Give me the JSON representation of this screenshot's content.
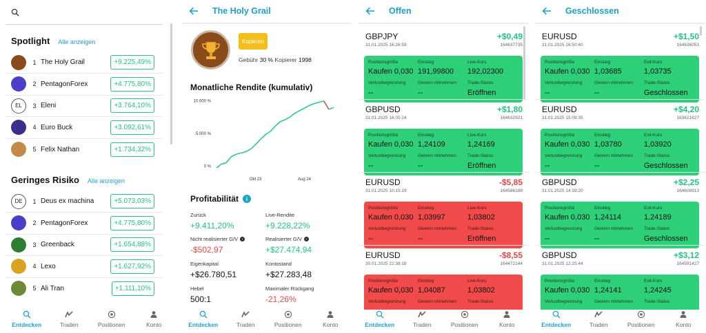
{
  "discover": {
    "spotlight": {
      "title": "Spotlight",
      "link": "Alle anzeigen",
      "items": [
        {
          "rank": "1",
          "name": "The Holy Grail",
          "value": "+9.225,49%",
          "avatar_color": "#8a4b1a",
          "avatar_text": ""
        },
        {
          "rank": "2",
          "name": "PentagonForex",
          "value": "+4.775,80%",
          "avatar_color": "#4b3ec8",
          "avatar_text": ""
        },
        {
          "rank": "3",
          "name": "Eleni",
          "value": "+3.764,10%",
          "avatar_color": "#ffffff",
          "avatar_text": "EL"
        },
        {
          "rank": "4",
          "name": "Euro Buck",
          "value": "+3.092,61%",
          "avatar_color": "#3a2f8c",
          "avatar_text": ""
        },
        {
          "rank": "5",
          "name": "Felix Nathan",
          "value": "+1.734,32%",
          "avatar_color": "#c58a4a",
          "avatar_text": ""
        }
      ]
    },
    "low_risk": {
      "title": "Geringes Risiko",
      "link": "Alle anzeigen",
      "items": [
        {
          "rank": "1",
          "name": "Deus ex machina",
          "value": "+5.073,03%",
          "avatar_color": "#ffffff",
          "avatar_text": "DE"
        },
        {
          "rank": "2",
          "name": "PentagonForex",
          "value": "+4.775,80%",
          "avatar_color": "#4b3ec8",
          "avatar_text": ""
        },
        {
          "rank": "3",
          "name": "Greenback",
          "value": "+1.654,88%",
          "avatar_color": "#2f7d32",
          "avatar_text": ""
        },
        {
          "rank": "4",
          "name": "Lexo",
          "value": "+1.627,92%",
          "avatar_color": "#d9a521",
          "avatar_text": ""
        },
        {
          "rank": "5",
          "name": "Ali Tran",
          "value": "+1.111,10%",
          "avatar_color": "#6a8a3a",
          "avatar_text": ""
        }
      ]
    }
  },
  "nav": {
    "items": [
      "Entdecken",
      "Traden",
      "Positionen",
      "Konto"
    ]
  },
  "detail": {
    "title": "The Holy Grail",
    "copy_button": "Kopieren",
    "fee_label": "Gebühr",
    "fee_value": "30 %",
    "copiers_label": "Kopierer",
    "copiers_value": "1998",
    "chart_title": "Monatliche Rendite (kumulativ)",
    "profit_title": "Profitabilität",
    "stats": {
      "back_label": "Zurück",
      "back_value": "+9.411,20%",
      "live_label": "Live-Rendite",
      "live_value": "+9.228,22%",
      "unrealized_label": "Nicht realisierter G/V",
      "unrealized_value": "-$502,97",
      "realized_label": "Realisierter G/V",
      "realized_value": "+$27.474,94",
      "equity_label": "Eigenkapital",
      "equity_value": "+$26.780,51",
      "balance_label": "Kontostand",
      "balance_value": "+$27.283,48",
      "leverage_label": "Hebel",
      "leverage_value": "500:1",
      "drawdown_label": "Maximaler Rückgang",
      "drawdown_value": "-21,26%"
    }
  },
  "chart_data": {
    "type": "line",
    "title": "Monatliche Rendite (kumulativ)",
    "y_tick_labels": [
      "0 %",
      "5.000 %",
      "10.000 %"
    ],
    "x_tick_labels": [
      "Okt 23",
      "Aug 24"
    ],
    "ylim": [
      -500,
      10500
    ],
    "grid": false,
    "x": [
      0,
      1,
      2,
      3,
      4,
      5,
      6,
      7,
      8,
      9,
      10,
      11,
      12,
      13,
      14,
      15,
      16,
      17,
      18,
      19,
      20,
      21,
      22,
      23,
      24
    ],
    "series": [
      {
        "values": [
          -300,
          300,
          500,
          1400,
          1800,
          2000,
          2200,
          2600,
          3300,
          4100,
          4800,
          5300,
          6100,
          6800,
          7100,
          7500,
          8100,
          8500,
          8900,
          9300,
          9600,
          9800,
          10000,
          8700,
          9000
        ],
        "color": "#2ec98a"
      }
    ],
    "accent_segment_color": "#e04848"
  },
  "open": {
    "title": "Offen",
    "labels": {
      "size": "Positionsgröße",
      "entry": "Einstieg",
      "live": "Live-Kurs",
      "sl": "Verlustbegrenzung",
      "tp": "Gewinn mitnehmen",
      "status": "Trade-Status"
    },
    "trades": [
      {
        "symbol": "GBPJPY",
        "pl": "+$0,49",
        "date": "31.01.2025 16:26:59",
        "id": "164637735",
        "side": "Kaufen 0,030",
        "entry": "191,99800",
        "price": "192,02300",
        "sl": "--",
        "tp": "--",
        "status": "Eröffnen",
        "color": "g"
      },
      {
        "symbol": "GBPUSD",
        "pl": "+$1,80",
        "date": "31.01.2025 16:05:24",
        "id": "164632921",
        "side": "Kaufen 0,030",
        "entry": "1,24109",
        "price": "1,24169",
        "sl": "--",
        "tp": "--",
        "status": "Eröffnen",
        "color": "g"
      },
      {
        "symbol": "EURUSD",
        "pl": "-$5,85",
        "date": "31.01.2025 10:15:19",
        "id": "164586188",
        "side": "Kaufen 0,030",
        "entry": "1,03997",
        "price": "1,03802",
        "sl": "--",
        "tp": "--",
        "status": "Eröffnen",
        "color": "r"
      },
      {
        "symbol": "EURUSD",
        "pl": "-$8,55",
        "date": "30.01.2025 22:38:18",
        "id": "164472144",
        "side": "Kaufen 0,030",
        "entry": "1,04087",
        "price": "1,03802",
        "sl": "--",
        "tp": "--",
        "status": "",
        "color": "r"
      }
    ]
  },
  "closed": {
    "title": "Geschlossen",
    "labels": {
      "size": "Positionsgröße",
      "entry": "Einstieg",
      "exit": "Exit-Kurs",
      "sl": "Verlustbegrenzung",
      "tp": "Gewinn mitnehmen",
      "status": "Trade-Status"
    },
    "trades": [
      {
        "symbol": "EURUSD",
        "pl": "+$1,50",
        "date": "31.01.2025 16:50:40",
        "id": "164636053",
        "side": "Kaufen 0,030",
        "entry": "1,03685",
        "price": "1,03735",
        "sl": "--",
        "tp": "--",
        "status": "Geschlossen",
        "color": "g"
      },
      {
        "symbol": "EURUSD",
        "pl": "+$4,20",
        "date": "31.01.2025 15:09:35",
        "id": "163621627",
        "side": "Kaufen 0,030",
        "entry": "1,03780",
        "price": "1,03920",
        "sl": "--",
        "tp": "--",
        "status": "Geschlossen",
        "color": "g"
      },
      {
        "symbol": "GBPUSD",
        "pl": "+$2,25",
        "date": "31.01.2025 14:39:20",
        "id": "164608913",
        "side": "Kaufen 0,030",
        "entry": "1,24114",
        "price": "1,24189",
        "sl": "--",
        "tp": "--",
        "status": "Geschlossen",
        "color": "g"
      },
      {
        "symbol": "GBPUSD",
        "pl": "+$3,12",
        "date": "31.01.2025 12:25:44",
        "id": "164591427",
        "side": "Kaufen 0,030",
        "entry": "1,24141",
        "price": "1,24245",
        "sl": "--",
        "tp": "--",
        "status": "",
        "color": "g"
      }
    ]
  }
}
